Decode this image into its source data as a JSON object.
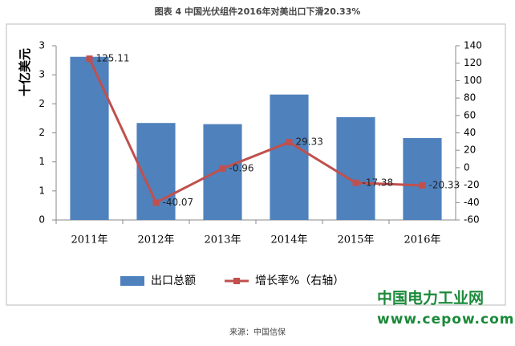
{
  "chart_data": {
    "type": "bar_line",
    "title": "图表 4  中国光伏组件2016年对美出口下滑20.33%",
    "y_label": "十亿美元",
    "categories": [
      "2011年",
      "2012年",
      "2013年",
      "2014年",
      "2015年",
      "2016年"
    ],
    "series": [
      {
        "name": "出口总额",
        "type": "bar",
        "color": "#4f81bd",
        "values": [
          2.81,
          1.67,
          1.65,
          2.16,
          1.77,
          1.41
        ]
      },
      {
        "name": "增长率%（右轴）",
        "type": "line",
        "axis": "y2",
        "color": "#c0504d",
        "values": [
          125.11,
          -40.07,
          -0.96,
          29.33,
          -17.38,
          -20.33
        ]
      }
    ],
    "ylim": [
      0,
      3
    ],
    "yticks": [
      0,
      {
        "value": 0.5,
        "label": "1"
      },
      1,
      {
        "value": 1.5,
        "label": "2"
      },
      2,
      {
        "value": 2.5,
        "label": "3"
      },
      3
    ],
    "y2lim": [
      -60,
      140
    ],
    "y2ticks": [
      -60,
      -40,
      -20,
      0,
      20,
      40,
      60,
      80,
      100,
      120,
      140
    ],
    "source": "来源：中国信保",
    "watermark": [
      "中国电力工业网",
      "www.cepow.com"
    ]
  }
}
